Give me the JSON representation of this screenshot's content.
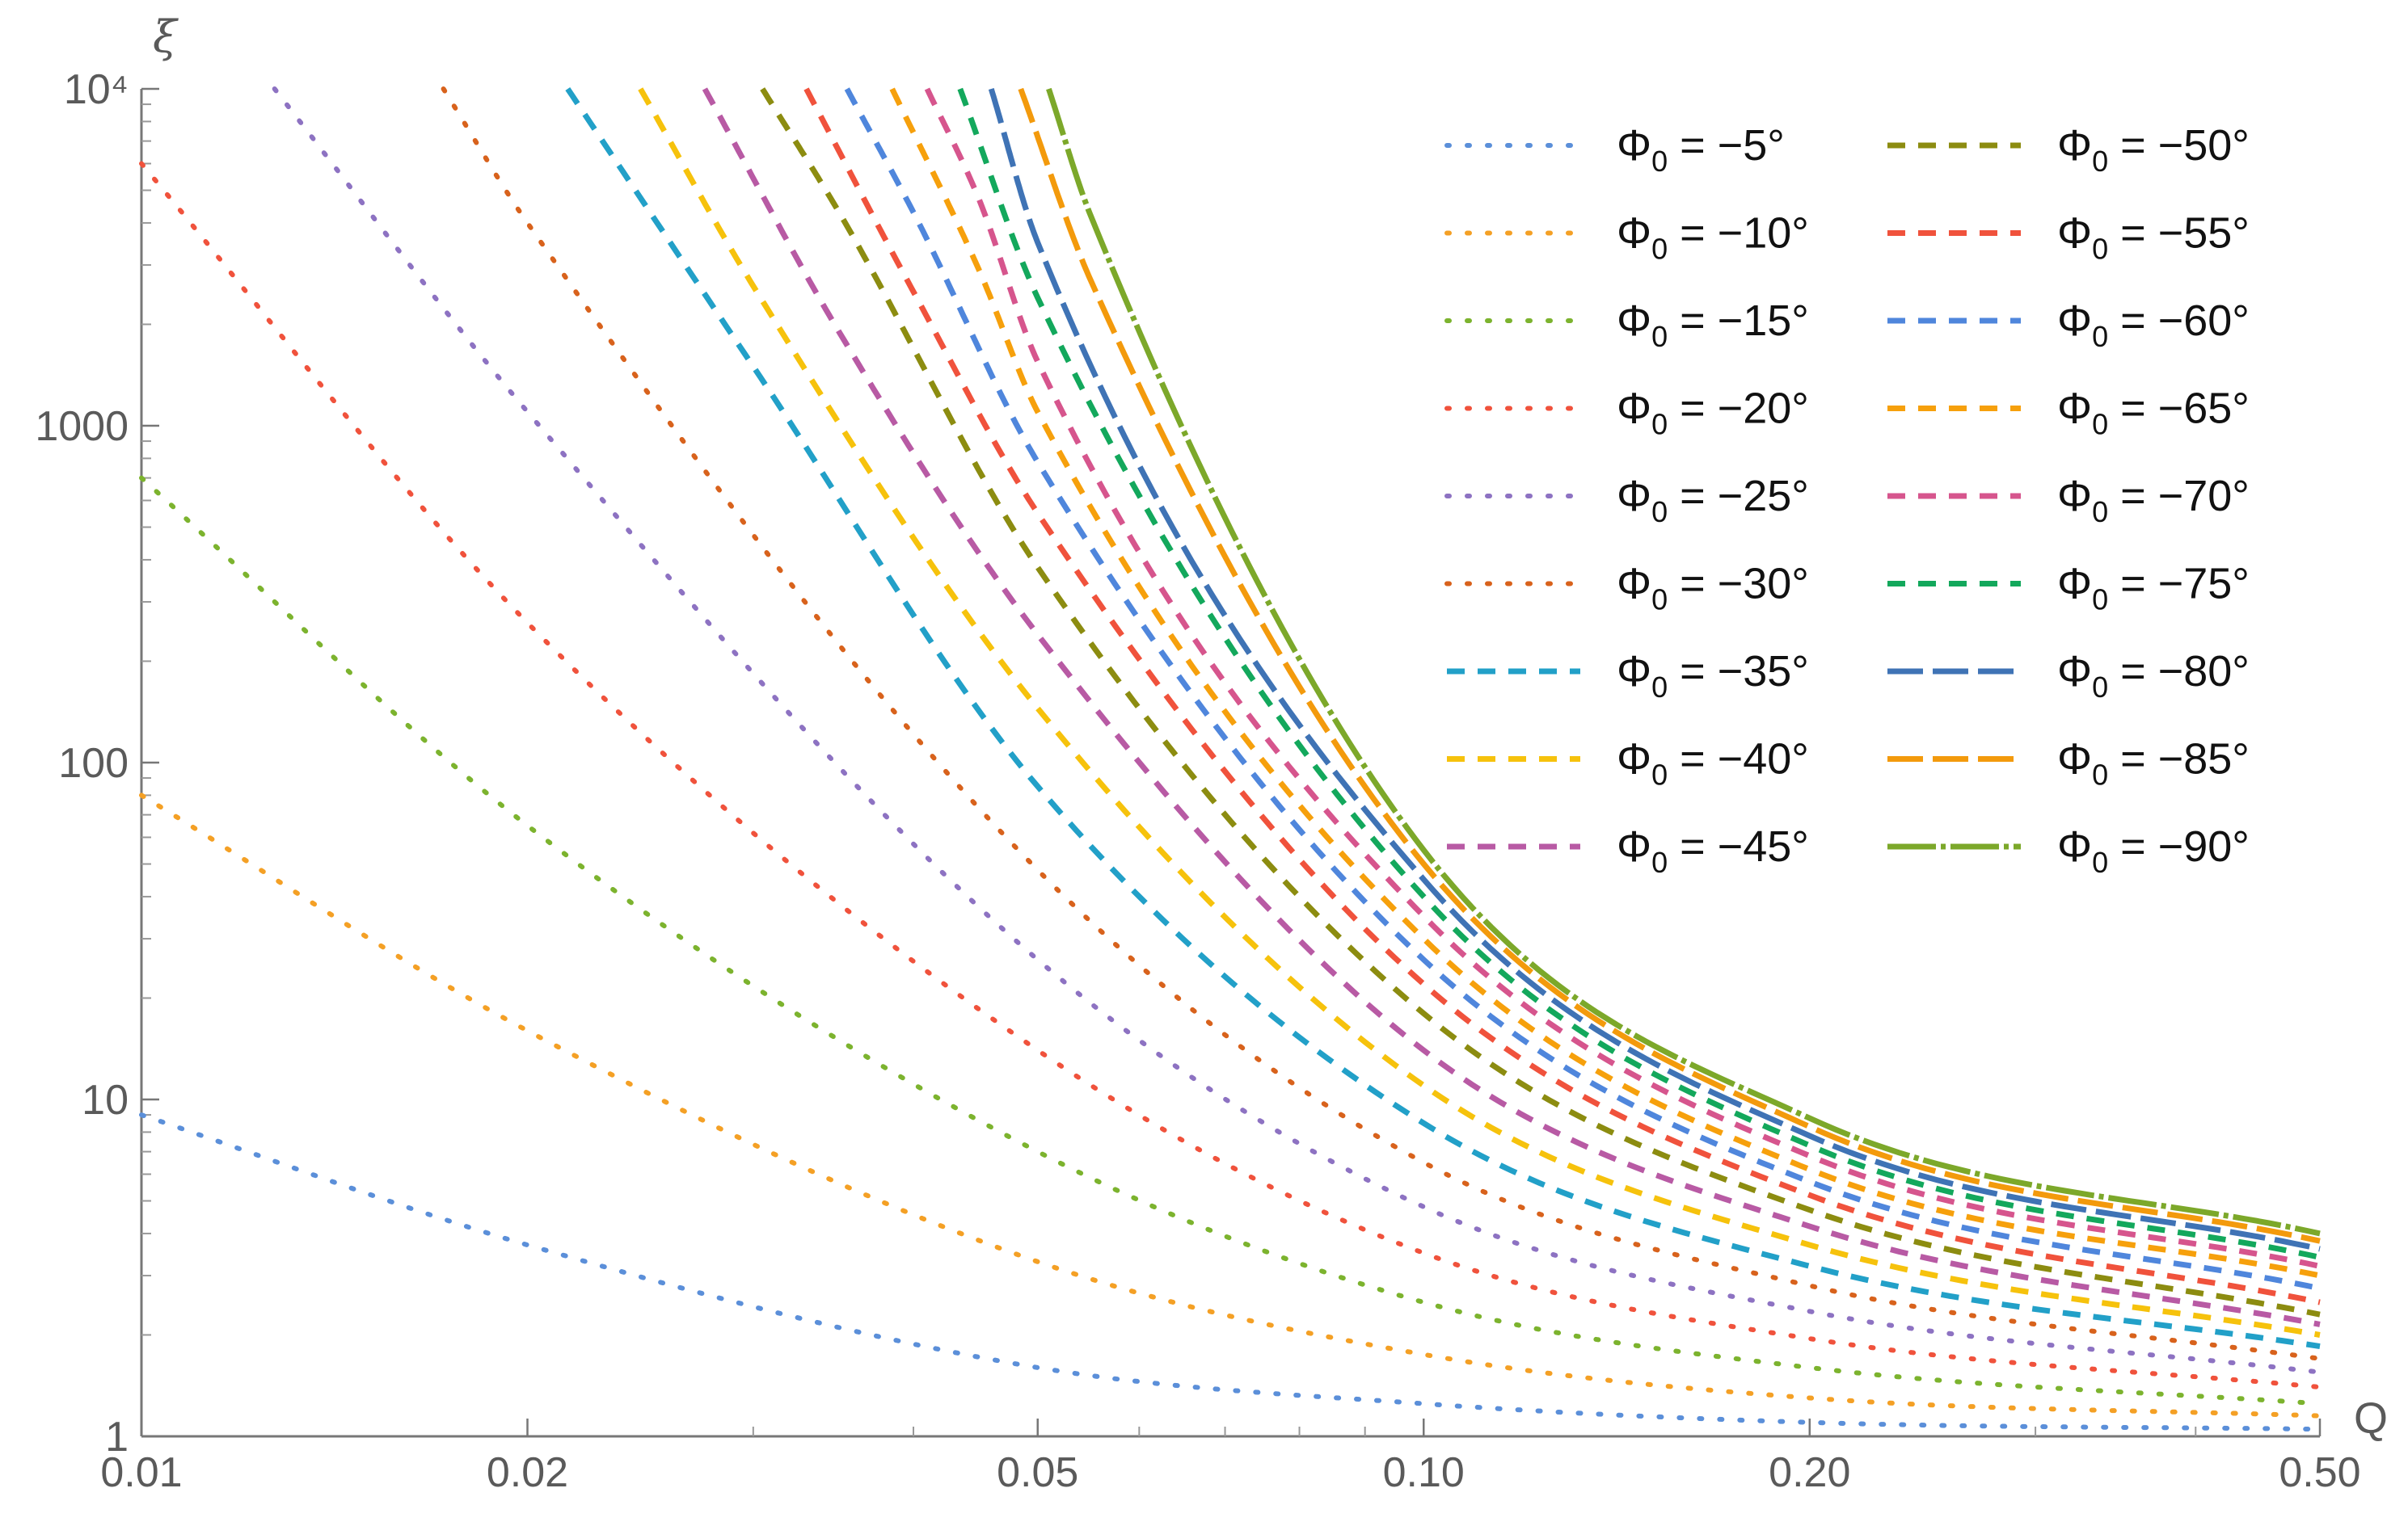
{
  "chart_data": {
    "type": "line",
    "title": "",
    "xlabel": "Q",
    "ylabel": "ξ",
    "x_scale": "log",
    "y_scale": "log",
    "xlim": [
      0.01,
      0.5
    ],
    "ylim": [
      1,
      10000
    ],
    "x_ticks": [
      {
        "value": 0.01,
        "label": "0.01"
      },
      {
        "value": 0.02,
        "label": "0.02"
      },
      {
        "value": 0.05,
        "label": "0.05"
      },
      {
        "value": 0.1,
        "label": "0.10"
      },
      {
        "value": 0.2,
        "label": "0.20"
      },
      {
        "value": 0.5,
        "label": "0.50"
      }
    ],
    "y_ticks": [
      {
        "value": 1,
        "label": "1"
      },
      {
        "value": 10,
        "label": "10"
      },
      {
        "value": 100,
        "label": "100"
      },
      {
        "value": 1000,
        "label": "1000"
      },
      {
        "value": 10000,
        "label": "10⁴"
      }
    ],
    "grid": false,
    "legend_placement": "top-right",
    "series": [
      {
        "name": "Φ0 = −5°",
        "color": "#5b8fd9",
        "style": "dotted",
        "points": [
          [
            0.01,
            9
          ],
          [
            0.02,
            3.7
          ],
          [
            0.05,
            1.6
          ],
          [
            0.1,
            1.25
          ],
          [
            0.2,
            1.1
          ],
          [
            0.5,
            1.05
          ]
        ]
      },
      {
        "name": "Φ0 = −10°",
        "color": "#f4a025",
        "style": "dotted",
        "points": [
          [
            0.01,
            80
          ],
          [
            0.02,
            16
          ],
          [
            0.05,
            3.3
          ],
          [
            0.1,
            1.75
          ],
          [
            0.2,
            1.3
          ],
          [
            0.5,
            1.15
          ]
        ]
      },
      {
        "name": "Φ0 = −15°",
        "color": "#7cb32e",
        "style": "dotted",
        "points": [
          [
            0.01,
            700
          ],
          [
            0.02,
            65
          ],
          [
            0.05,
            7
          ],
          [
            0.1,
            2.5
          ],
          [
            0.2,
            1.6
          ],
          [
            0.5,
            1.25
          ]
        ]
      },
      {
        "name": "Φ0 = −20°",
        "color": "#f0523c",
        "style": "dotted",
        "points": [
          [
            0.01,
            6000
          ],
          [
            0.02,
            260
          ],
          [
            0.05,
            14
          ],
          [
            0.1,
            3.5
          ],
          [
            0.2,
            1.95
          ],
          [
            0.5,
            1.4
          ]
        ]
      },
      {
        "name": "Φ0 = −25°",
        "color": "#8d72c2",
        "style": "dotted",
        "points": [
          [
            0.0127,
            10000
          ],
          [
            0.02,
            1100
          ],
          [
            0.05,
            26
          ],
          [
            0.1,
            4.8
          ],
          [
            0.2,
            2.35
          ],
          [
            0.5,
            1.55
          ]
        ]
      },
      {
        "name": "Φ0 = −30°",
        "color": "#d8621c",
        "style": "dotted",
        "points": [
          [
            0.0172,
            10000
          ],
          [
            0.02,
            4000
          ],
          [
            0.05,
            48
          ],
          [
            0.1,
            6.5
          ],
          [
            0.2,
            2.8
          ],
          [
            0.5,
            1.7
          ]
        ]
      },
      {
        "name": "Φ0 = −35°",
        "color": "#22a0c8",
        "style": "dashed",
        "points": [
          [
            0.0215,
            10000
          ],
          [
            0.03,
            1500
          ],
          [
            0.05,
            85
          ],
          [
            0.1,
            8.5
          ],
          [
            0.2,
            3.2
          ],
          [
            0.5,
            1.85
          ]
        ]
      },
      {
        "name": "Φ0 = −40°",
        "color": "#f6c20c",
        "style": "dashed",
        "points": [
          [
            0.0245,
            10000
          ],
          [
            0.03,
            2600
          ],
          [
            0.05,
            145
          ],
          [
            0.1,
            11
          ],
          [
            0.2,
            3.7
          ],
          [
            0.5,
            2.0
          ]
        ]
      },
      {
        "name": "Φ0 = −45°",
        "color": "#b85aa4",
        "style": "dashed",
        "points": [
          [
            0.0275,
            10000
          ],
          [
            0.035,
            1900
          ],
          [
            0.05,
            240
          ],
          [
            0.1,
            14
          ],
          [
            0.2,
            4.2
          ],
          [
            0.5,
            2.15
          ]
        ]
      },
      {
        "name": "Φ0 = −50°",
        "color": "#8c8c10",
        "style": "dashed",
        "points": [
          [
            0.0305,
            10000
          ],
          [
            0.035,
            4300
          ],
          [
            0.05,
            380
          ],
          [
            0.1,
            18
          ],
          [
            0.2,
            4.7
          ],
          [
            0.5,
            2.3
          ]
        ]
      },
      {
        "name": "Φ0 = −55°",
        "color": "#f0523c",
        "style": "dashed",
        "points": [
          [
            0.033,
            10000
          ],
          [
            0.04,
            2500
          ],
          [
            0.05,
            550
          ],
          [
            0.1,
            22
          ],
          [
            0.2,
            5.2
          ],
          [
            0.5,
            2.5
          ]
        ]
      },
      {
        "name": "Φ0 = −60°",
        "color": "#4f86dc",
        "style": "dashed",
        "points": [
          [
            0.0355,
            10000
          ],
          [
            0.04,
            4300
          ],
          [
            0.05,
            780
          ],
          [
            0.1,
            26
          ],
          [
            0.2,
            5.7
          ],
          [
            0.5,
            2.75
          ]
        ]
      },
      {
        "name": "Φ0 = −65°",
        "color": "#f6a00c",
        "style": "dashed",
        "points": [
          [
            0.0385,
            10000
          ],
          [
            0.045,
            2900
          ],
          [
            0.05,
            1100
          ],
          [
            0.1,
            30
          ],
          [
            0.2,
            6.2
          ],
          [
            0.5,
            3.0
          ]
        ]
      },
      {
        "name": "Φ0 = −70°",
        "color": "#d6558d",
        "style": "dashed",
        "points": [
          [
            0.041,
            10000
          ],
          [
            0.045,
            4700
          ],
          [
            0.05,
            1550
          ],
          [
            0.1,
            35
          ],
          [
            0.2,
            6.8
          ],
          [
            0.5,
            3.2
          ]
        ]
      },
      {
        "name": "Φ0 = −75°",
        "color": "#13a85c",
        "style": "dashed",
        "points": [
          [
            0.0435,
            10000
          ],
          [
            0.05,
            2400
          ],
          [
            0.1,
            40
          ],
          [
            0.2,
            7.3
          ],
          [
            0.5,
            3.4
          ]
        ]
      },
      {
        "name": "Φ0 = −80°",
        "color": "#3f73b5",
        "style": "longdash",
        "points": [
          [
            0.046,
            10000
          ],
          [
            0.05,
            3500
          ],
          [
            0.1,
            45
          ],
          [
            0.2,
            7.8
          ],
          [
            0.5,
            3.6
          ]
        ]
      },
      {
        "name": "Φ0 = −85°",
        "color": "#f39a0c",
        "style": "longdash",
        "points": [
          [
            0.0485,
            10000
          ],
          [
            0.055,
            2700
          ],
          [
            0.1,
            50
          ],
          [
            0.2,
            8.3
          ],
          [
            0.5,
            3.8
          ]
        ]
      },
      {
        "name": "Φ0 = −90°",
        "color": "#7ca82a",
        "style": "dashdot",
        "points": [
          [
            0.051,
            10000
          ],
          [
            0.055,
            4200
          ],
          [
            0.1,
            55
          ],
          [
            0.2,
            8.8
          ],
          [
            0.5,
            4.0
          ]
        ]
      }
    ]
  }
}
